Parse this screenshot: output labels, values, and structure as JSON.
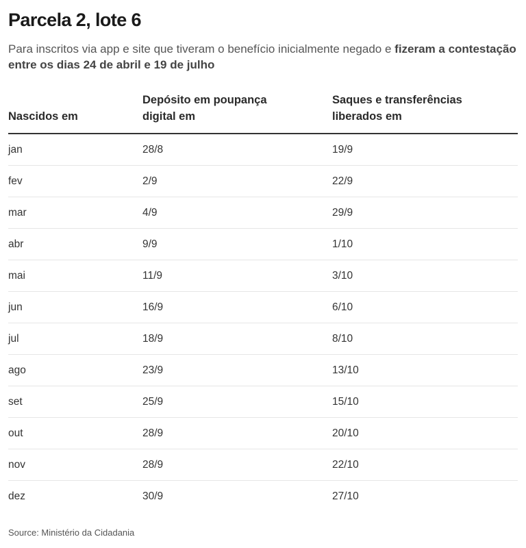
{
  "header": {
    "title": "Parcela 2, lote 6",
    "subtitle_plain": "Para inscritos via app e site que tiveram o benefício inicialmente negado e ",
    "subtitle_bold": "fizeram a contestação entre os dias 24 de abril e 19 de julho"
  },
  "table": {
    "columns": [
      "Nascidos em",
      "Depósito em poupança digital em",
      "Saques e transferências liberados em"
    ],
    "rows": [
      [
        "jan",
        "28/8",
        "19/9"
      ],
      [
        "fev",
        "2/9",
        "22/9"
      ],
      [
        "mar",
        "4/9",
        "29/9"
      ],
      [
        "abr",
        "9/9",
        "1/10"
      ],
      [
        "mai",
        "11/9",
        "3/10"
      ],
      [
        "jun",
        "16/9",
        "6/10"
      ],
      [
        "jul",
        "18/9",
        "8/10"
      ],
      [
        "ago",
        "23/9",
        "13/10"
      ],
      [
        "set",
        "25/9",
        "15/10"
      ],
      [
        "out",
        "28/9",
        "20/10"
      ],
      [
        "nov",
        "28/9",
        "22/10"
      ],
      [
        "dez",
        "30/9",
        "27/10"
      ]
    ]
  },
  "footer": {
    "source": "Source: Ministério da Cidadania"
  }
}
